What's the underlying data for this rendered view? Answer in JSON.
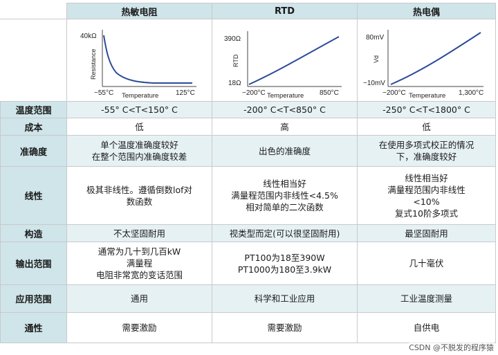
{
  "columns": [
    "热敏电阻",
    "RTD",
    "热电偶"
  ],
  "charts": [
    {
      "y_top": "40kΩ",
      "y_axis": "Resistance",
      "x_left": "−55°C",
      "x_right": "125°C",
      "x_axis": "Temperature"
    },
    {
      "y_top": "390Ω",
      "y_bottom": "18Ω",
      "y_axis": "RTD",
      "x_left": "−200°C",
      "x_right": "850°C",
      "x_axis": "Temperature"
    },
    {
      "y_top": "80mV",
      "y_bottom": "−10mV",
      "y_axis": "Vd",
      "x_left": "−200°C",
      "x_right": "1,300°C",
      "x_axis": "Temperature"
    }
  ],
  "rows": [
    {
      "label": "温度范围",
      "cells": [
        [
          "-55° C<T<150° C"
        ],
        [
          "-200° C<T<850° C"
        ],
        [
          "-250° C<T<1800° C"
        ]
      ]
    },
    {
      "label": "成本",
      "cells": [
        [
          "低"
        ],
        [
          "高"
        ],
        [
          "低"
        ]
      ]
    },
    {
      "label": "准确度",
      "cells": [
        [
          "单个温度准确度较好",
          "在整个范围内准确度较差"
        ],
        [
          "出色的准确度"
        ],
        [
          "在使用多项式校正的情况",
          "下，准确度较好"
        ]
      ]
    },
    {
      "label": "线性",
      "cells": [
        [
          "极其非线性。遵循倒数lof对",
          "数函数"
        ],
        [
          "线性相当好",
          "满量程范围内非线性<4.5%",
          "相对简单的二次函数"
        ],
        [
          "线性相当好",
          "满量程范围内非线性",
          "<10%",
          "复式10阶多项式"
        ]
      ]
    },
    {
      "label": "构造",
      "cells": [
        [
          "不太坚固耐用"
        ],
        [
          "视类型而定(可以很坚固耐用)"
        ],
        [
          "最坚固耐用"
        ]
      ]
    },
    {
      "label": "输出范围",
      "cells": [
        [
          "通常为几十到几百kW",
          "满量程",
          "电阻非常宽的变话范围"
        ],
        [
          "PT100为18至390W",
          "PT1000为180至3.9kW"
        ],
        [
          "几十毫伏"
        ]
      ]
    },
    {
      "label": "应用范围",
      "cells": [
        [
          "通用"
        ],
        [
          "科学和工业应用"
        ],
        [
          "工业温度测量"
        ]
      ]
    },
    {
      "label": "通性",
      "cells": [
        [
          "需要激励"
        ],
        [
          "需要激励"
        ],
        [
          "自供电"
        ]
      ]
    }
  ],
  "watermark": "CSDN @不脱发的程序猿"
}
